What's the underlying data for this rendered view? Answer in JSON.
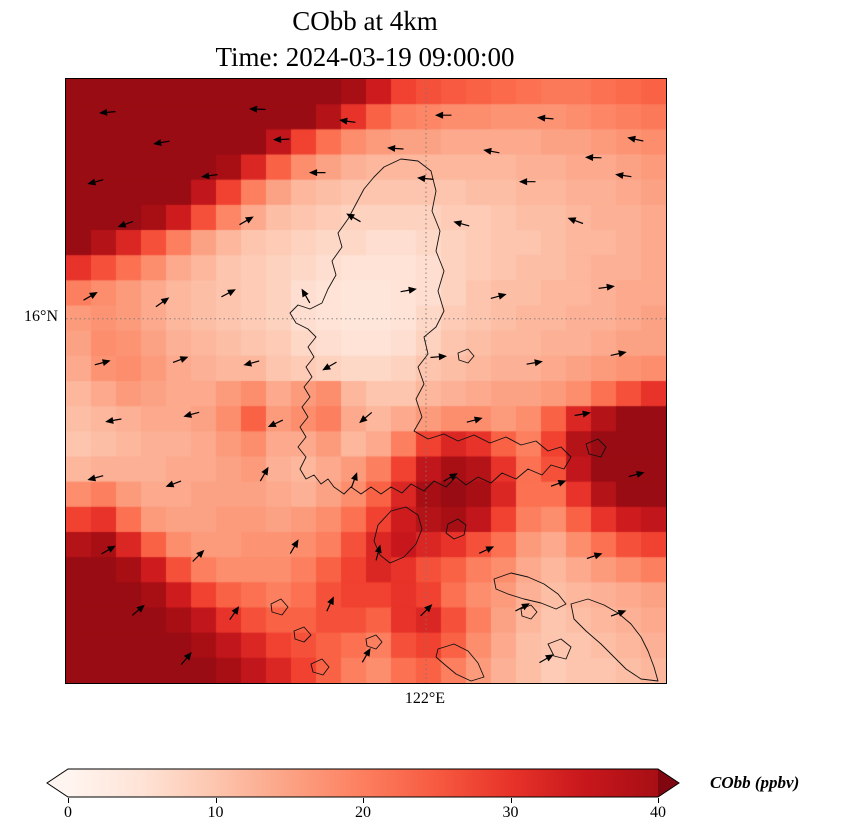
{
  "title": {
    "line1": "CObb at 4km",
    "line2": "Time: 2024-03-19 09:00:00"
  },
  "axes": {
    "lat_label": "16°N",
    "lon_label": "122°E"
  },
  "colorbar": {
    "label": "CObb (ppbv)",
    "ticks": [
      "0",
      "10",
      "20",
      "30",
      "40"
    ],
    "min": 0,
    "max": 40,
    "extend": "both"
  },
  "colors": {
    "cmap_stops": [
      "#fff5f0",
      "#fee0d2",
      "#fcbba1",
      "#fc9272",
      "#fb6a4a",
      "#ef3b2c",
      "#cb181d",
      "#a50f15",
      "#67000d"
    ],
    "coastline": "#111111",
    "arrow": "#000000",
    "gridline": "#777777"
  },
  "chart_data": {
    "type": "heatmap",
    "title": "CObb at 4km",
    "subtitle": "Time: 2024-03-19 09:00:00",
    "variable": "CObb",
    "level": "4km",
    "units": "ppbv",
    "colorbar_label": "CObb (ppbv)",
    "vmin": 0,
    "vmax": 40,
    "colorbar_extend": "both",
    "gridlines": {
      "lat": "16°N",
      "lon": "122°E"
    },
    "gridlines_frac": {
      "lat": 0.397,
      "lon": 0.6
    },
    "grid_shape": [
      24,
      24
    ],
    "values": [
      [
        44,
        44,
        44,
        44,
        44,
        44,
        44,
        44,
        44,
        43,
        42,
        40,
        34,
        28,
        26,
        25,
        24,
        23,
        22,
        21,
        21,
        22,
        23,
        24
      ],
      [
        44,
        44,
        44,
        44,
        44,
        44,
        44,
        44,
        44,
        42,
        38,
        30,
        24,
        20,
        19,
        18,
        18,
        17,
        17,
        17,
        18,
        19,
        20,
        21
      ],
      [
        44,
        44,
        44,
        44,
        44,
        44,
        44,
        42,
        36,
        28,
        22,
        18,
        16,
        15,
        15,
        14,
        14,
        14,
        14,
        15,
        15,
        16,
        17,
        18
      ],
      [
        44,
        44,
        44,
        44,
        44,
        43,
        40,
        32,
        24,
        18,
        15,
        13,
        12,
        12,
        12,
        12,
        12,
        12,
        13,
        13,
        14,
        14,
        15,
        16
      ],
      [
        44,
        44,
        44,
        44,
        42,
        36,
        28,
        20,
        15,
        12,
        11,
        10,
        10,
        10,
        10,
        10,
        11,
        11,
        12,
        12,
        13,
        13,
        14,
        15
      ],
      [
        44,
        44,
        43,
        40,
        34,
        26,
        19,
        14,
        11,
        10,
        9,
        8,
        8,
        8,
        8,
        9,
        9,
        10,
        11,
        11,
        12,
        13,
        13,
        14
      ],
      [
        42,
        38,
        32,
        26,
        20,
        15,
        12,
        10,
        9,
        8,
        7,
        7,
        6,
        6,
        7,
        8,
        9,
        10,
        10,
        11,
        12,
        12,
        13,
        14
      ],
      [
        30,
        26,
        22,
        18,
        14,
        12,
        10,
        9,
        8,
        7,
        6,
        5,
        5,
        5,
        6,
        8,
        9,
        10,
        11,
        11,
        12,
        13,
        13,
        14
      ],
      [
        20,
        18,
        16,
        14,
        12,
        11,
        10,
        9,
        8,
        6,
        5,
        4,
        4,
        5,
        6,
        8,
        10,
        11,
        11,
        12,
        12,
        13,
        14,
        14
      ],
      [
        16,
        17,
        16,
        14,
        12,
        11,
        10,
        9,
        8,
        6,
        5,
        4,
        4,
        5,
        7,
        9,
        10,
        11,
        12,
        12,
        13,
        13,
        14,
        15
      ],
      [
        15,
        18,
        17,
        15,
        13,
        12,
        11,
        10,
        9,
        7,
        6,
        5,
        5,
        6,
        8,
        10,
        11,
        12,
        12,
        13,
        13,
        14,
        15,
        15
      ],
      [
        14,
        17,
        18,
        16,
        14,
        13,
        12,
        12,
        10,
        9,
        8,
        7,
        7,
        8,
        10,
        11,
        12,
        13,
        13,
        14,
        15,
        16,
        17,
        18
      ],
      [
        12,
        14,
        16,
        15,
        14,
        14,
        16,
        18,
        14,
        16,
        18,
        12,
        10,
        10,
        12,
        13,
        14,
        15,
        15,
        16,
        18,
        22,
        26,
        30
      ],
      [
        11,
        12,
        13,
        14,
        14,
        15,
        18,
        24,
        16,
        18,
        20,
        14,
        12,
        14,
        16,
        18,
        18,
        16,
        18,
        24,
        32,
        38,
        42,
        44
      ],
      [
        10,
        11,
        12,
        13,
        13,
        14,
        16,
        18,
        14,
        14,
        16,
        12,
        14,
        20,
        28,
        32,
        30,
        24,
        20,
        28,
        38,
        43,
        44,
        44
      ],
      [
        12,
        13,
        13,
        13,
        14,
        14,
        15,
        16,
        13,
        12,
        14,
        16,
        20,
        28,
        36,
        40,
        38,
        30,
        22,
        26,
        36,
        42,
        44,
        44
      ],
      [
        18,
        20,
        16,
        14,
        14,
        15,
        15,
        15,
        14,
        13,
        15,
        18,
        24,
        32,
        40,
        42,
        40,
        32,
        22,
        22,
        30,
        38,
        42,
        42
      ],
      [
        28,
        30,
        22,
        16,
        15,
        15,
        16,
        16,
        15,
        16,
        18,
        22,
        28,
        34,
        38,
        40,
        36,
        28,
        20,
        18,
        24,
        30,
        34,
        36
      ],
      [
        38,
        40,
        32,
        24,
        18,
        16,
        16,
        17,
        17,
        18,
        20,
        26,
        32,
        35,
        32,
        30,
        26,
        22,
        16,
        14,
        18,
        22,
        26,
        28
      ],
      [
        43,
        44,
        40,
        34,
        26,
        20,
        18,
        18,
        18,
        20,
        24,
        28,
        32,
        30,
        26,
        24,
        20,
        18,
        14,
        12,
        14,
        16,
        18,
        20
      ],
      [
        44,
        44,
        44,
        40,
        34,
        28,
        24,
        22,
        20,
        22,
        26,
        28,
        28,
        30,
        28,
        22,
        18,
        16,
        13,
        11,
        12,
        13,
        14,
        15
      ],
      [
        44,
        44,
        44,
        44,
        40,
        36,
        30,
        26,
        24,
        24,
        26,
        26,
        24,
        30,
        32,
        26,
        20,
        15,
        12,
        10,
        11,
        12,
        13,
        14
      ],
      [
        44,
        44,
        44,
        44,
        44,
        40,
        36,
        32,
        28,
        26,
        24,
        22,
        20,
        26,
        28,
        24,
        18,
        14,
        11,
        10,
        10,
        11,
        12,
        13
      ],
      [
        44,
        44,
        44,
        44,
        44,
        44,
        40,
        36,
        32,
        28,
        24,
        20,
        18,
        22,
        24,
        20,
        16,
        13,
        11,
        9,
        10,
        10,
        11,
        12
      ]
    ],
    "wind_arrows": [
      [
        0.07,
        0.055,
        185
      ],
      [
        0.32,
        0.05,
        178
      ],
      [
        0.47,
        0.07,
        172
      ],
      [
        0.63,
        0.06,
        180
      ],
      [
        0.8,
        0.065,
        175
      ],
      [
        0.95,
        0.1,
        168
      ],
      [
        0.16,
        0.105,
        190
      ],
      [
        0.36,
        0.1,
        182
      ],
      [
        0.55,
        0.115,
        176
      ],
      [
        0.71,
        0.12,
        170
      ],
      [
        0.88,
        0.13,
        178
      ],
      [
        0.05,
        0.17,
        195
      ],
      [
        0.24,
        0.16,
        188
      ],
      [
        0.42,
        0.155,
        180
      ],
      [
        0.6,
        0.165,
        174
      ],
      [
        0.77,
        0.17,
        180
      ],
      [
        0.93,
        0.16,
        172
      ],
      [
        0.1,
        0.24,
        200
      ],
      [
        0.3,
        0.235,
        30
      ],
      [
        0.48,
        0.23,
        150
      ],
      [
        0.66,
        0.24,
        165
      ],
      [
        0.85,
        0.235,
        160
      ],
      [
        0.04,
        0.36,
        30
      ],
      [
        0.16,
        0.37,
        35
      ],
      [
        0.27,
        0.355,
        28
      ],
      [
        0.4,
        0.36,
        120
      ],
      [
        0.57,
        0.35,
        10
      ],
      [
        0.72,
        0.36,
        15
      ],
      [
        0.9,
        0.345,
        8
      ],
      [
        0.06,
        0.47,
        15
      ],
      [
        0.19,
        0.465,
        20
      ],
      [
        0.31,
        0.47,
        195
      ],
      [
        0.44,
        0.475,
        210
      ],
      [
        0.62,
        0.46,
        5
      ],
      [
        0.78,
        0.47,
        10
      ],
      [
        0.92,
        0.455,
        12
      ],
      [
        0.08,
        0.565,
        190
      ],
      [
        0.21,
        0.555,
        195
      ],
      [
        0.35,
        0.57,
        205
      ],
      [
        0.5,
        0.56,
        220
      ],
      [
        0.68,
        0.565,
        15
      ],
      [
        0.86,
        0.555,
        10
      ],
      [
        0.05,
        0.66,
        195
      ],
      [
        0.18,
        0.67,
        200
      ],
      [
        0.33,
        0.655,
        60
      ],
      [
        0.48,
        0.665,
        70
      ],
      [
        0.64,
        0.66,
        30
      ],
      [
        0.82,
        0.67,
        20
      ],
      [
        0.95,
        0.655,
        15
      ],
      [
        0.07,
        0.78,
        30
      ],
      [
        0.22,
        0.79,
        45
      ],
      [
        0.38,
        0.775,
        60
      ],
      [
        0.52,
        0.785,
        75
      ],
      [
        0.7,
        0.78,
        25
      ],
      [
        0.88,
        0.79,
        18
      ],
      [
        0.12,
        0.88,
        40
      ],
      [
        0.28,
        0.885,
        55
      ],
      [
        0.44,
        0.87,
        65
      ],
      [
        0.6,
        0.88,
        45
      ],
      [
        0.76,
        0.875,
        28
      ],
      [
        0.92,
        0.885,
        20
      ],
      [
        0.2,
        0.96,
        50
      ],
      [
        0.5,
        0.955,
        60
      ],
      [
        0.8,
        0.96,
        30
      ]
    ]
  }
}
